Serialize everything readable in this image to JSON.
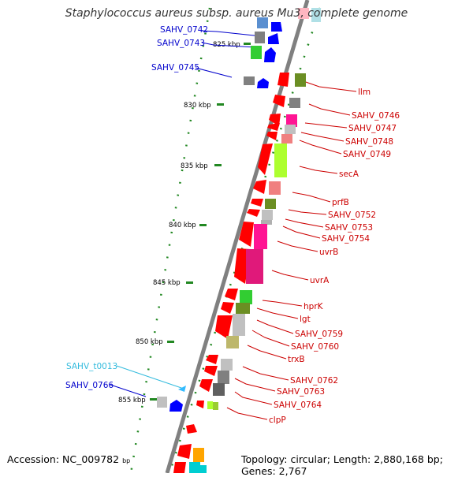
{
  "title": "Staphylococcus aureus subsp. aureus Mu3, complete genome",
  "footer": {
    "accession": "Accession: NC_009782",
    "bp_unit": "bp",
    "topology": "Topology: circular; Length: 2,880,168 bp; Genes: 2,767"
  },
  "scale_labels": [
    "825 kbp",
    "830 kbp",
    "835 kbp",
    "840 kbp",
    "845 kbp",
    "850 kbp",
    "855 kbp"
  ],
  "left_labels": [
    {
      "text": "SAHV_0742",
      "color": "#0000cc"
    },
    {
      "text": "SAHV_0743",
      "color": "#0000cc"
    },
    {
      "text": "SAHV_0745",
      "color": "#0000cc"
    },
    {
      "text": "SAHV_t0013",
      "color": "#33bbdd"
    },
    {
      "text": "SAHV_0766",
      "color": "#0000cc"
    }
  ],
  "right_labels": [
    {
      "text": "llm",
      "color": "#cc0000"
    },
    {
      "text": "SAHV_0746",
      "color": "#cc0000"
    },
    {
      "text": "SAHV_0747",
      "color": "#cc0000"
    },
    {
      "text": "SAHV_0748",
      "color": "#cc0000"
    },
    {
      "text": "SAHV_0749",
      "color": "#cc0000"
    },
    {
      "text": "secA",
      "color": "#cc0000"
    },
    {
      "text": "prfB",
      "color": "#cc0000"
    },
    {
      "text": "SAHV_0752",
      "color": "#cc0000"
    },
    {
      "text": "SAHV_0753",
      "color": "#cc0000"
    },
    {
      "text": "SAHV_0754",
      "color": "#cc0000"
    },
    {
      "text": "uvrB",
      "color": "#cc0000"
    },
    {
      "text": "uvrA",
      "color": "#cc0000"
    },
    {
      "text": "hprK",
      "color": "#cc0000"
    },
    {
      "text": "lgt",
      "color": "#cc0000"
    },
    {
      "text": "SAHV_0759",
      "color": "#cc0000"
    },
    {
      "text": "SAHV_0760",
      "color": "#cc0000"
    },
    {
      "text": "trxB",
      "color": "#cc0000"
    },
    {
      "text": "SAHV_0762",
      "color": "#cc0000"
    },
    {
      "text": "SAHV_0763",
      "color": "#cc0000"
    },
    {
      "text": "SAHV_0764",
      "color": "#cc0000"
    },
    {
      "text": "clpP",
      "color": "#cc0000"
    }
  ],
  "colors": {
    "backbone": "#808080",
    "forward_gene": "#0000ff",
    "reverse_gene": "#ff0000",
    "trna": "#33bbff",
    "dotted_ring": "#228822",
    "cog_palette": [
      "#ff1493",
      "#adff2f",
      "#6b8e23",
      "#808080",
      "#c0c0c0",
      "#bdb76b",
      "#32cd32",
      "#f08080",
      "#ffa500",
      "#00ced1",
      "#ffb6c1",
      "#b0e0e6"
    ]
  }
}
